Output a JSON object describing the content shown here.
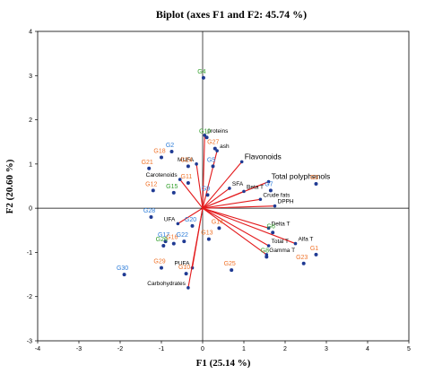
{
  "chart_data": {
    "type": "scatter",
    "title": "Biplot (axes F1 and F2: 45.74 %)",
    "xlabel": "F1 (25.14 %)",
    "ylabel": "F2 (20.60 %)",
    "xlim": [
      -4,
      5
    ],
    "ylim": [
      -3,
      4
    ],
    "x_ticks": [
      "-4",
      "-3",
      "-2",
      "-1",
      "0",
      "1",
      "2",
      "3",
      "4",
      "5"
    ],
    "y_ticks": [
      "-3",
      "-2",
      "-1",
      "0",
      "1",
      "2",
      "3",
      "4"
    ],
    "colors": {
      "variable": "#e31a1c",
      "point": "#1f3a93",
      "label_green": "#33a02c",
      "label_orange": "#f0732a",
      "label_blue": "#2b7bd8",
      "axis": "#000000"
    },
    "observations": [
      {
        "label": "G1",
        "x": 2.75,
        "y": -1.05,
        "color": "orange"
      },
      {
        "label": "G2",
        "x": -0.75,
        "y": 1.28,
        "color": "blue"
      },
      {
        "label": "G3",
        "x": 2.75,
        "y": 0.55,
        "color": "orange"
      },
      {
        "label": "G4",
        "x": 0.02,
        "y": 2.95,
        "color": "green"
      },
      {
        "label": "G5",
        "x": 0.25,
        "y": 0.95,
        "color": "blue"
      },
      {
        "label": "G6",
        "x": 1.7,
        "y": -0.55,
        "color": "green"
      },
      {
        "label": "G7",
        "x": 1.65,
        "y": 0.4,
        "color": "blue"
      },
      {
        "label": "G8",
        "x": 1.55,
        "y": -1.1,
        "color": "green"
      },
      {
        "label": "G9",
        "x": 0.12,
        "y": 0.3,
        "color": "blue"
      },
      {
        "label": "G10",
        "x": -0.4,
        "y": -1.48,
        "color": "orange"
      },
      {
        "label": "G11",
        "x": -0.35,
        "y": 0.57,
        "color": "orange"
      },
      {
        "label": "G12",
        "x": -1.2,
        "y": 0.4,
        "color": "orange"
      },
      {
        "label": "G13",
        "x": 0.15,
        "y": -0.7,
        "color": "orange"
      },
      {
        "label": "G14",
        "x": 0.4,
        "y": -0.45,
        "color": "orange"
      },
      {
        "label": "G15",
        "x": -0.7,
        "y": 0.35,
        "color": "green"
      },
      {
        "label": "G16",
        "x": -0.7,
        "y": -0.8,
        "color": "orange"
      },
      {
        "label": "G17",
        "x": -0.9,
        "y": -0.75,
        "color": "blue"
      },
      {
        "label": "G18",
        "x": -1.0,
        "y": 1.15,
        "color": "orange"
      },
      {
        "label": "G19",
        "x": 0.1,
        "y": 1.6,
        "color": "green"
      },
      {
        "label": "G20",
        "x": -0.25,
        "y": -0.4,
        "color": "blue"
      },
      {
        "label": "G21",
        "x": -1.3,
        "y": 0.9,
        "color": "orange"
      },
      {
        "label": "G22",
        "x": -0.45,
        "y": -0.75,
        "color": "blue"
      },
      {
        "label": "G23",
        "x": 2.45,
        "y": -1.25,
        "color": "orange"
      },
      {
        "label": "G24",
        "x": -0.35,
        "y": 0.95,
        "color": "orange"
      },
      {
        "label": "G25",
        "x": 0.7,
        "y": -1.4,
        "color": "orange"
      },
      {
        "label": "G26",
        "x": -0.95,
        "y": -0.85,
        "color": "green"
      },
      {
        "label": "G27",
        "x": 0.3,
        "y": 1.35,
        "color": "orange"
      },
      {
        "label": "G28",
        "x": -1.25,
        "y": -0.2,
        "color": "blue"
      },
      {
        "label": "G29",
        "x": -1.0,
        "y": -1.35,
        "color": "orange"
      },
      {
        "label": "G30",
        "x": -1.9,
        "y": -1.5,
        "color": "blue"
      }
    ],
    "variables": [
      {
        "label": "proteins",
        "x": 0.05,
        "y": 1.65
      },
      {
        "label": "ash",
        "x": 0.35,
        "y": 1.3
      },
      {
        "label": "MUFA",
        "x": -0.15,
        "y": 1.0
      },
      {
        "label": "Flavonoids",
        "x": 0.95,
        "y": 1.05
      },
      {
        "label": "Carotenoids",
        "x": -0.55,
        "y": 0.65
      },
      {
        "label": "Total polyphenols",
        "x": 1.6,
        "y": 0.6
      },
      {
        "label": "SFA",
        "x": 0.65,
        "y": 0.45
      },
      {
        "label": "Beta T",
        "x": 1.0,
        "y": 0.38
      },
      {
        "label": "Crude fats",
        "x": 1.4,
        "y": 0.2
      },
      {
        "label": "DPPH",
        "x": 1.75,
        "y": 0.05
      },
      {
        "label": "Delta T",
        "x": 1.6,
        "y": -0.45
      },
      {
        "label": "UFA",
        "x": -0.6,
        "y": -0.35
      },
      {
        "label": "Alfa T",
        "x": 2.25,
        "y": -0.8
      },
      {
        "label": "Total T",
        "x": 1.6,
        "y": -0.85
      },
      {
        "label": "Gamma T",
        "x": 1.55,
        "y": -1.05
      },
      {
        "label": "PUFA",
        "x": -0.25,
        "y": -1.35
      },
      {
        "label": "Carbohydrates",
        "x": -0.35,
        "y": -1.8
      }
    ]
  }
}
